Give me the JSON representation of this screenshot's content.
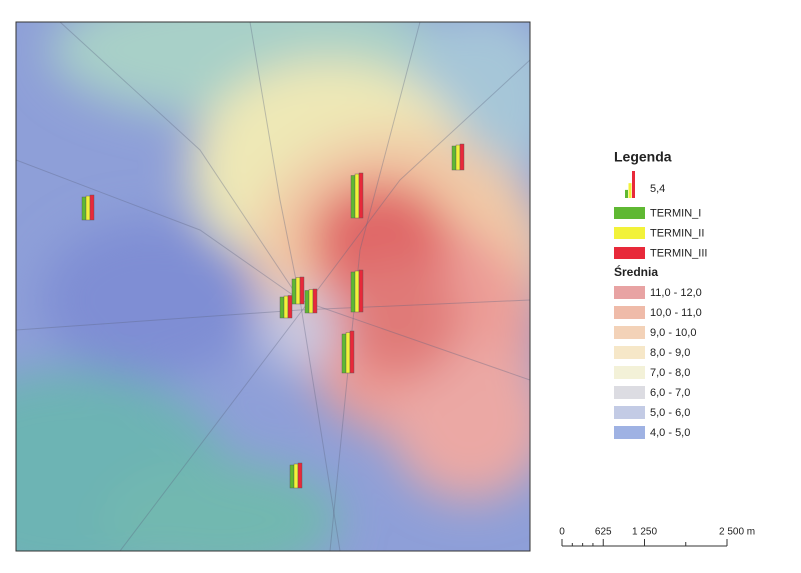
{
  "legend": {
    "title": "Legenda",
    "symbol": {
      "value": 5.4,
      "label": "5,4"
    },
    "series": [
      {
        "name": "TERMIN_I",
        "color": "#5fb832"
      },
      {
        "name": "TERMIN_II",
        "color": "#f2f23a"
      },
      {
        "name": "TERMIN_III",
        "color": "#e8293a"
      }
    ],
    "classes_title": "Średnia",
    "classes": [
      {
        "label": "11,0 - 12,0",
        "color": "#e8a3a3"
      },
      {
        "label": "10,0 - 11,0",
        "color": "#efbba9"
      },
      {
        "label": "9,0 - 10,0",
        "color": "#f3d2b8"
      },
      {
        "label": "8,0 - 9,0",
        "color": "#f6e7c8"
      },
      {
        "label": "7,0 - 8,0",
        "color": "#f3f1d8"
      },
      {
        "label": "6,0 - 7,0",
        "color": "#dcdce2"
      },
      {
        "label": "5,0 - 6,0",
        "color": "#c3cbe5"
      },
      {
        "label": "4,0 - 5,0",
        "color": "#9fb2e3"
      }
    ]
  },
  "stations": [
    [
      4.8,
      5.0,
      5.2
    ],
    [
      4.6,
      4.8,
      5.0
    ],
    [
      8.5,
      8.8,
      9.0
    ],
    [
      8.0,
      8.2,
      8.4
    ],
    [
      5.0,
      5.3,
      5.4
    ],
    [
      4.2,
      4.4,
      4.5
    ],
    [
      4.5,
      4.7,
      4.8
    ],
    [
      7.8,
      8.1,
      8.4
    ],
    [
      4.6,
      4.8,
      5.0
    ]
  ],
  "scale_bar": {
    "ticks": [
      0,
      625,
      {
        "value": 1250,
        "label": "1 250"
      },
      {
        "value": 2500,
        "label": "2 500 m"
      }
    ],
    "range": [
      0,
      2500
    ]
  }
}
